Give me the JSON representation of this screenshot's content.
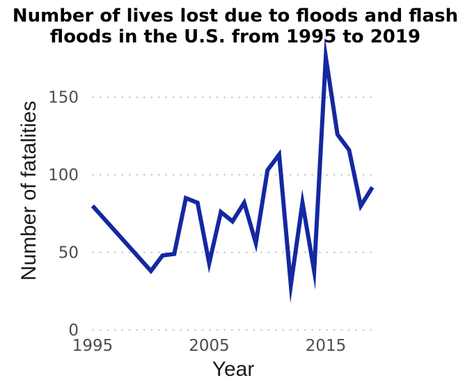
{
  "chart_data": {
    "type": "line",
    "title_lines": [
      "Number of lives lost due to floods and flash",
      "floods in the U.S. from 1995 to 2019"
    ],
    "xlabel": "Year",
    "ylabel": "Number of fatalities",
    "x_ticks": [
      1995,
      2005,
      2015
    ],
    "y_ticks": [
      0,
      50,
      100,
      150
    ],
    "xlim": [
      1995,
      2019
    ],
    "ylim": [
      0,
      175
    ],
    "grid": "horizontal dotted",
    "line_color": "#1428a0",
    "series": [
      {
        "x": [
          1995,
          2000,
          2001,
          2002,
          2003,
          2004,
          2005,
          2006,
          2007,
          2008,
          2009,
          2010,
          2011,
          2012,
          2013,
          2014,
          2015,
          2016,
          2017,
          2018,
          2019
        ],
        "y": [
          80,
          38,
          48,
          49,
          85,
          82,
          43,
          76,
          70,
          82,
          56,
          103,
          113,
          29,
          82,
          38,
          176,
          126,
          116,
          80,
          92
        ]
      }
    ]
  }
}
